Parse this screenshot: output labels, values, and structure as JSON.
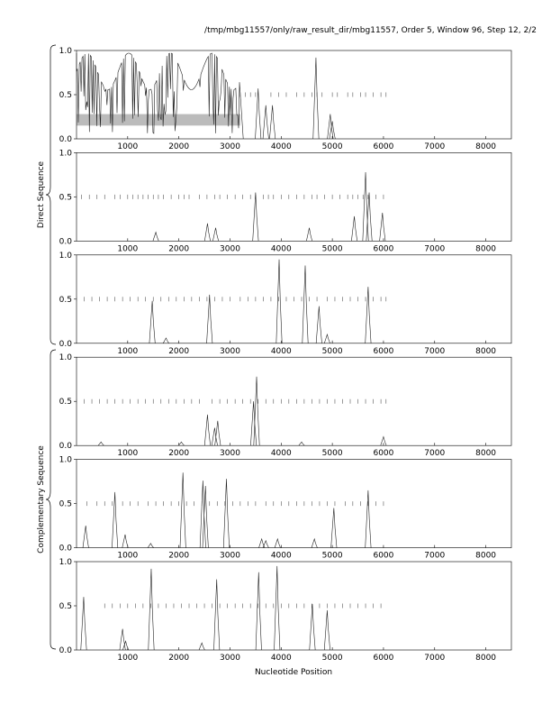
{
  "header": {
    "title": "/tmp/mbg11557/only/raw_result_dir/mbg11557, Order 5, Window 96, Step 12, 2/2"
  },
  "axes_labels": {
    "xlabel": "Nucleotide Position",
    "direct_label": "Direct Sequence",
    "complementary_label": "Complementary Sequence"
  },
  "colors": {
    "trace": "#222222",
    "orf_tick": "#555555",
    "highlight": "#bbbbbb"
  },
  "chart_data": {
    "type": "line",
    "xlim": [
      0,
      8500
    ],
    "ylim": [
      0,
      1.0
    ],
    "xticks": [
      1000,
      2000,
      3000,
      4000,
      5000,
      6000,
      7000,
      8000
    ],
    "yticks": [
      0.0,
      0.5,
      1.0
    ],
    "grid": false,
    "panels": [
      {
        "strand": "direct",
        "frame": 1,
        "highlight": {
          "x": [
            0,
            3200
          ],
          "y": [
            0.15,
            0.28
          ]
        },
        "orf_ticks": {
          "y": 0.5,
          "x": [
            3200,
            3300,
            3400,
            3500,
            3800,
            3950,
            4100,
            4300,
            4450,
            4600,
            4700,
            4800,
            5000,
            5100,
            5300,
            5400,
            5550,
            5650,
            5800,
            5950,
            6050
          ]
        },
        "peaks": [
          {
            "x": 3550,
            "y": 0.57
          },
          {
            "x": 3700,
            "y": 0.38
          },
          {
            "x": 3830,
            "y": 0.38
          },
          {
            "x": 4680,
            "y": 0.92
          },
          {
            "x": 4960,
            "y": 0.28
          },
          {
            "x": 5000,
            "y": 0.2
          }
        ],
        "dense_region": {
          "x": [
            0,
            3200
          ],
          "min": 0.05,
          "max": 0.97
        }
      },
      {
        "strand": "direct",
        "frame": 2,
        "orf_ticks": {
          "y": 0.5,
          "x": [
            0,
            100,
            250,
            400,
            550,
            750,
            850,
            1000,
            1100,
            1200,
            1300,
            1400,
            1500,
            1600,
            1700,
            1850,
            2000,
            2100,
            2200,
            2400,
            2550,
            2700,
            2800,
            2950,
            3100,
            3250,
            3400,
            3500,
            3650,
            3750,
            3850,
            4000,
            4150,
            4300,
            4450,
            4600,
            4700,
            4850,
            5000,
            5150,
            5300,
            5400,
            5500,
            5600,
            5700,
            5850,
            6000
          ]
        },
        "peaks": [
          {
            "x": 1550,
            "y": 0.1
          },
          {
            "x": 2560,
            "y": 0.2
          },
          {
            "x": 2720,
            "y": 0.15
          },
          {
            "x": 3500,
            "y": 0.55
          },
          {
            "x": 4550,
            "y": 0.15
          },
          {
            "x": 5430,
            "y": 0.28
          },
          {
            "x": 5650,
            "y": 0.78
          },
          {
            "x": 5720,
            "y": 0.55
          },
          {
            "x": 5980,
            "y": 0.32
          }
        ]
      },
      {
        "strand": "direct",
        "frame": 3,
        "orf_ticks": {
          "y": 0.5,
          "x": [
            0,
            150,
            300,
            450,
            600,
            750,
            900,
            1050,
            1200,
            1350,
            1500,
            1650,
            1800,
            1950,
            2100,
            2250,
            2400,
            2550,
            2700,
            2850,
            3000,
            3200,
            3350,
            3500,
            3650,
            3800,
            3950,
            4100,
            4250,
            4400,
            4550,
            4700,
            4900,
            5050,
            5200,
            5350,
            5500,
            5650,
            5800,
            5950,
            6050
          ]
        },
        "peaks": [
          {
            "x": 1480,
            "y": 0.48
          },
          {
            "x": 1750,
            "y": 0.06
          },
          {
            "x": 2600,
            "y": 0.55
          },
          {
            "x": 3960,
            "y": 0.95
          },
          {
            "x": 4470,
            "y": 0.88
          },
          {
            "x": 4740,
            "y": 0.42
          },
          {
            "x": 4900,
            "y": 0.1
          },
          {
            "x": 5700,
            "y": 0.64
          }
        ]
      },
      {
        "strand": "complementary",
        "frame": 1,
        "orf_ticks": {
          "y": 0.5,
          "x": [
            0,
            150,
            300,
            450,
            600,
            750,
            900,
            1050,
            1200,
            1350,
            1500,
            1650,
            1800,
            1950,
            2100,
            2250,
            2400,
            2650,
            2800,
            2950,
            3100,
            3250,
            3400,
            3550,
            3700,
            3850,
            4000,
            4150,
            4300,
            4450,
            4600,
            4750,
            4900,
            5050,
            5200,
            5350,
            5500,
            5650,
            5800,
            5950,
            6050
          ]
        },
        "peaks": [
          {
            "x": 480,
            "y": 0.04
          },
          {
            "x": 2050,
            "y": 0.04
          },
          {
            "x": 2560,
            "y": 0.35
          },
          {
            "x": 2700,
            "y": 0.2
          },
          {
            "x": 2760,
            "y": 0.28
          },
          {
            "x": 3460,
            "y": 0.5
          },
          {
            "x": 3520,
            "y": 0.78
          },
          {
            "x": 4400,
            "y": 0.04
          },
          {
            "x": 6000,
            "y": 0.1
          }
        ]
      },
      {
        "strand": "complementary",
        "frame": 2,
        "orf_ticks": {
          "y": 0.5,
          "x": [
            0,
            200,
            400,
            550,
            700,
            900,
            1050,
            1200,
            1400,
            1550,
            1700,
            1850,
            2000,
            2150,
            2300,
            2450,
            2600,
            2750,
            2900,
            3050,
            3200,
            3350,
            3500,
            3700,
            3850,
            4000,
            4150,
            4300,
            4450,
            4600,
            4750,
            4900,
            5050,
            5250,
            5400,
            5550,
            5700,
            5850,
            6000
          ]
        },
        "peaks": [
          {
            "x": 180,
            "y": 0.25
          },
          {
            "x": 750,
            "y": 0.63
          },
          {
            "x": 950,
            "y": 0.15
          },
          {
            "x": 1450,
            "y": 0.05
          },
          {
            "x": 2080,
            "y": 0.85
          },
          {
            "x": 2470,
            "y": 0.76
          },
          {
            "x": 2520,
            "y": 0.7
          },
          {
            "x": 2930,
            "y": 0.78
          },
          {
            "x": 3620,
            "y": 0.1
          },
          {
            "x": 3700,
            "y": 0.08
          },
          {
            "x": 3930,
            "y": 0.1
          },
          {
            "x": 4650,
            "y": 0.1
          },
          {
            "x": 5030,
            "y": 0.45
          },
          {
            "x": 5700,
            "y": 0.65
          }
        ]
      },
      {
        "strand": "complementary",
        "frame": 3,
        "orf_ticks": {
          "y": 0.5,
          "x": [
            550,
            700,
            850,
            1000,
            1150,
            1300,
            1450,
            1600,
            1750,
            1900,
            2050,
            2200,
            2350,
            2500,
            2650,
            2800,
            2950,
            3100,
            3250,
            3400,
            3550,
            3700,
            3850,
            4000,
            4150,
            4300,
            4450,
            4600,
            4750,
            4900,
            5050,
            5200,
            5350,
            5500,
            5650,
            5800,
            5950
          ]
        },
        "peaks": [
          {
            "x": 140,
            "y": 0.6
          },
          {
            "x": 900,
            "y": 0.24
          },
          {
            "x": 960,
            "y": 0.1
          },
          {
            "x": 1460,
            "y": 0.92
          },
          {
            "x": 2450,
            "y": 0.08
          },
          {
            "x": 2740,
            "y": 0.8
          },
          {
            "x": 3560,
            "y": 0.88
          },
          {
            "x": 3920,
            "y": 0.95
          },
          {
            "x": 4610,
            "y": 0.52
          },
          {
            "x": 4900,
            "y": 0.45
          }
        ]
      }
    ]
  }
}
